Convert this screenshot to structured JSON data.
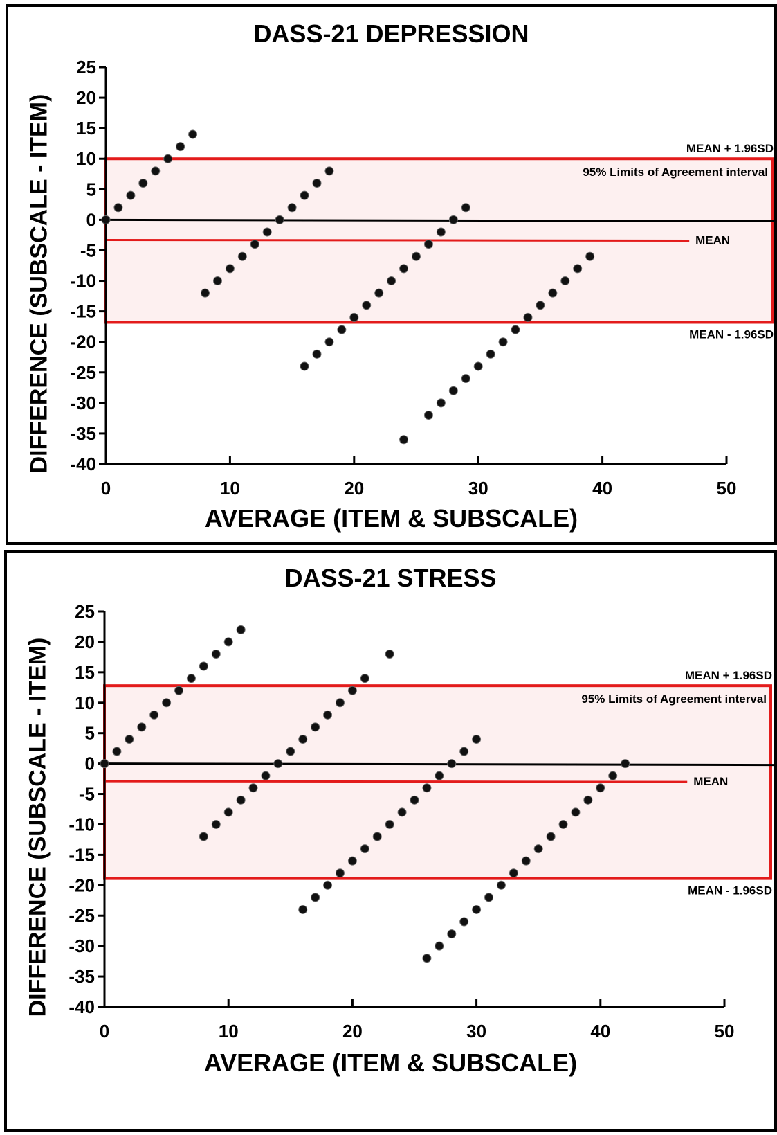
{
  "chart_data": [
    {
      "type": "scatter",
      "title": "DASS-21 DEPRESSION",
      "xlabel": "AVERAGE (ITEM & SUBSCALE)",
      "ylabel": "DIFFERENCE (SUBSCALE - ITEM)",
      "xlim": [
        0,
        50
      ],
      "ylim": [
        -40,
        25
      ],
      "xticks": [
        "0",
        "10",
        "20",
        "30",
        "40",
        "50"
      ],
      "yticks": [
        "25",
        "20",
        "15",
        "10",
        "5",
        "0",
        "-5",
        "-10",
        "-15",
        "-20",
        "-25",
        "-30",
        "-35",
        "-40"
      ],
      "grid": false,
      "mean": -3.3,
      "upper_loa": 10,
      "lower_loa": -16.8,
      "labels": {
        "upper": "MEAN + 1.96SD",
        "interval": "95% Limits of Agreement interval",
        "mean": "MEAN",
        "lower": "MEAN - 1.96SD"
      },
      "colors": {
        "points": "#111111",
        "limits": "#e31b1b",
        "zero": "#000000",
        "band": "#fdf0f0"
      },
      "points": [
        [
          0,
          0
        ],
        [
          1,
          2
        ],
        [
          2,
          4
        ],
        [
          3,
          6
        ],
        [
          4,
          8
        ],
        [
          5,
          10
        ],
        [
          6,
          12
        ],
        [
          7,
          14
        ],
        [
          8,
          -12
        ],
        [
          9,
          -10
        ],
        [
          10,
          -8
        ],
        [
          11,
          -6
        ],
        [
          12,
          -4
        ],
        [
          13,
          -2
        ],
        [
          14,
          0
        ],
        [
          15,
          2
        ],
        [
          16,
          4
        ],
        [
          17,
          6
        ],
        [
          18,
          8
        ],
        [
          16,
          -24
        ],
        [
          17,
          -22
        ],
        [
          18,
          -20
        ],
        [
          19,
          -18
        ],
        [
          20,
          -16
        ],
        [
          21,
          -14
        ],
        [
          22,
          -12
        ],
        [
          23,
          -10
        ],
        [
          24,
          -8
        ],
        [
          25,
          -6
        ],
        [
          26,
          -4
        ],
        [
          27,
          -2
        ],
        [
          28,
          0
        ],
        [
          29,
          2
        ],
        [
          24,
          -36
        ],
        [
          26,
          -32
        ],
        [
          27,
          -30
        ],
        [
          28,
          -28
        ],
        [
          29,
          -26
        ],
        [
          30,
          -24
        ],
        [
          31,
          -22
        ],
        [
          32,
          -20
        ],
        [
          33,
          -18
        ],
        [
          34,
          -16
        ],
        [
          35,
          -14
        ],
        [
          36,
          -12
        ],
        [
          37,
          -10
        ],
        [
          38,
          -8
        ],
        [
          39,
          -6
        ]
      ]
    },
    {
      "type": "scatter",
      "title": "DASS-21 STRESS",
      "xlabel": "AVERAGE (ITEM & SUBSCALE)",
      "ylabel": "DIFFERENCE (SUBSCALE - ITEM)",
      "xlim": [
        0,
        50
      ],
      "ylim": [
        -40,
        25
      ],
      "xticks": [
        "0",
        "10",
        "20",
        "30",
        "40",
        "50"
      ],
      "yticks": [
        "25",
        "20",
        "15",
        "10",
        "5",
        "0",
        "-5",
        "-10",
        "-15",
        "-20",
        "-25",
        "-30",
        "-35",
        "-40"
      ],
      "grid": false,
      "mean": -2.9,
      "upper_loa": 12.8,
      "lower_loa": -18.9,
      "labels": {
        "upper": "MEAN + 1.96SD",
        "interval": "95% Limits of Agreement interval",
        "mean": "MEAN",
        "lower": "MEAN - 1.96SD"
      },
      "colors": {
        "points": "#111111",
        "limits": "#e31b1b",
        "zero": "#000000",
        "band": "#fdf0f0"
      },
      "points": [
        [
          0,
          0
        ],
        [
          1,
          2
        ],
        [
          2,
          4
        ],
        [
          3,
          6
        ],
        [
          4,
          8
        ],
        [
          5,
          10
        ],
        [
          6,
          12
        ],
        [
          7,
          14
        ],
        [
          8,
          16
        ],
        [
          9,
          18
        ],
        [
          10,
          20
        ],
        [
          11,
          22
        ],
        [
          8,
          -12
        ],
        [
          9,
          -10
        ],
        [
          10,
          -8
        ],
        [
          11,
          -6
        ],
        [
          12,
          -4
        ],
        [
          13,
          -2
        ],
        [
          14,
          0
        ],
        [
          15,
          2
        ],
        [
          16,
          4
        ],
        [
          17,
          6
        ],
        [
          18,
          8
        ],
        [
          19,
          10
        ],
        [
          20,
          12
        ],
        [
          21,
          14
        ],
        [
          23,
          18
        ],
        [
          16,
          -24
        ],
        [
          17,
          -22
        ],
        [
          18,
          -20
        ],
        [
          19,
          -18
        ],
        [
          20,
          -16
        ],
        [
          21,
          -14
        ],
        [
          22,
          -12
        ],
        [
          23,
          -10
        ],
        [
          24,
          -8
        ],
        [
          25,
          -6
        ],
        [
          26,
          -4
        ],
        [
          27,
          -2
        ],
        [
          28,
          0
        ],
        [
          29,
          2
        ],
        [
          30,
          4
        ],
        [
          26,
          -32
        ],
        [
          27,
          -30
        ],
        [
          28,
          -28
        ],
        [
          29,
          -26
        ],
        [
          30,
          -24
        ],
        [
          31,
          -22
        ],
        [
          32,
          -20
        ],
        [
          33,
          -18
        ],
        [
          34,
          -16
        ],
        [
          35,
          -14
        ],
        [
          36,
          -12
        ],
        [
          37,
          -10
        ],
        [
          38,
          -8
        ],
        [
          39,
          -6
        ],
        [
          40,
          -4
        ],
        [
          41,
          -2
        ],
        [
          42,
          0
        ]
      ]
    }
  ]
}
